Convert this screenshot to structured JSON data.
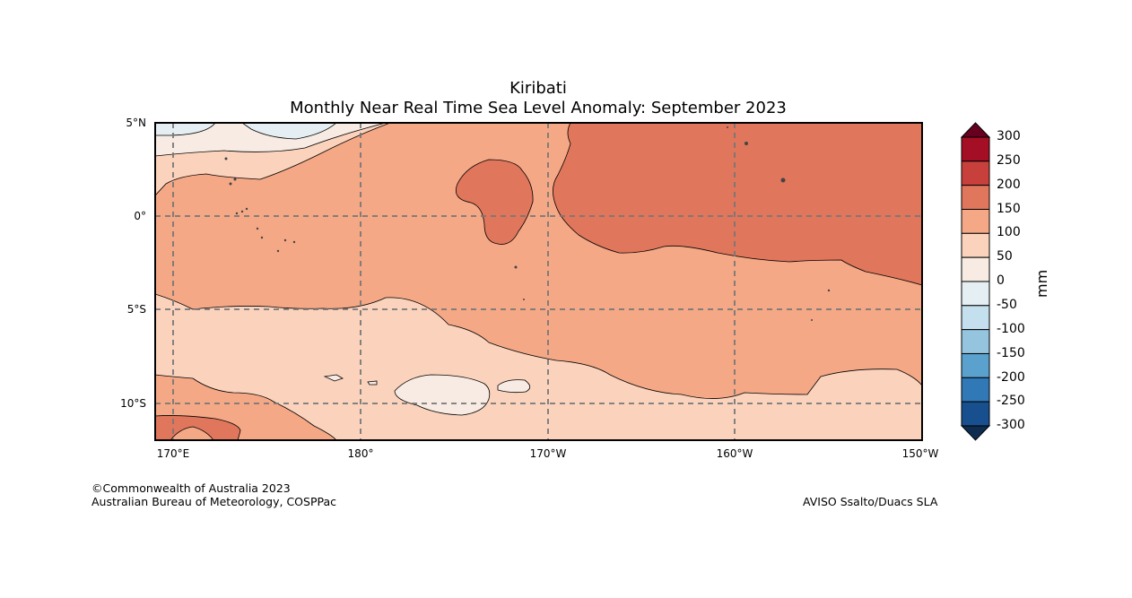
{
  "title": {
    "region": "Kiribati",
    "subtitle": "Monthly Near Real Time Sea Level Anomaly: September 2023"
  },
  "axes": {
    "latitude_labels": [
      "5°N",
      "0°",
      "5°S",
      "10°S"
    ],
    "longitude_labels": [
      "170°E",
      "180°",
      "170°W",
      "160°W",
      "150°W"
    ]
  },
  "colorbar": {
    "unit": "mm",
    "ticks": [
      "300",
      "250",
      "200",
      "150",
      "100",
      "50",
      "0",
      "-50",
      "-100",
      "-150",
      "-200",
      "-250",
      "-300"
    ],
    "colors": {
      "extend_high": "#67001f",
      "250_300": "#a50f26",
      "200_250": "#c8403c",
      "150_200": "#e0765c",
      "100_150": "#f4a886",
      "50_100": "#fbd3bd",
      "0_50": "#f8ebe3",
      "neg50_0": "#e5eef3",
      "neg100_neg50": "#c4dfed",
      "neg150_neg100": "#94c4de",
      "neg200_neg150": "#5aa2cd",
      "neg250_neg200": "#3079b6",
      "neg300_neg250": "#18508f",
      "extend_low": "#0d2c4f"
    }
  },
  "credits": {
    "copyright": "©Commonwealth of Australia 2023",
    "agency": "Australian Bureau of Meteorology, COSPPac",
    "data_source": "AVISO Ssalto/Duacs SLA"
  }
}
